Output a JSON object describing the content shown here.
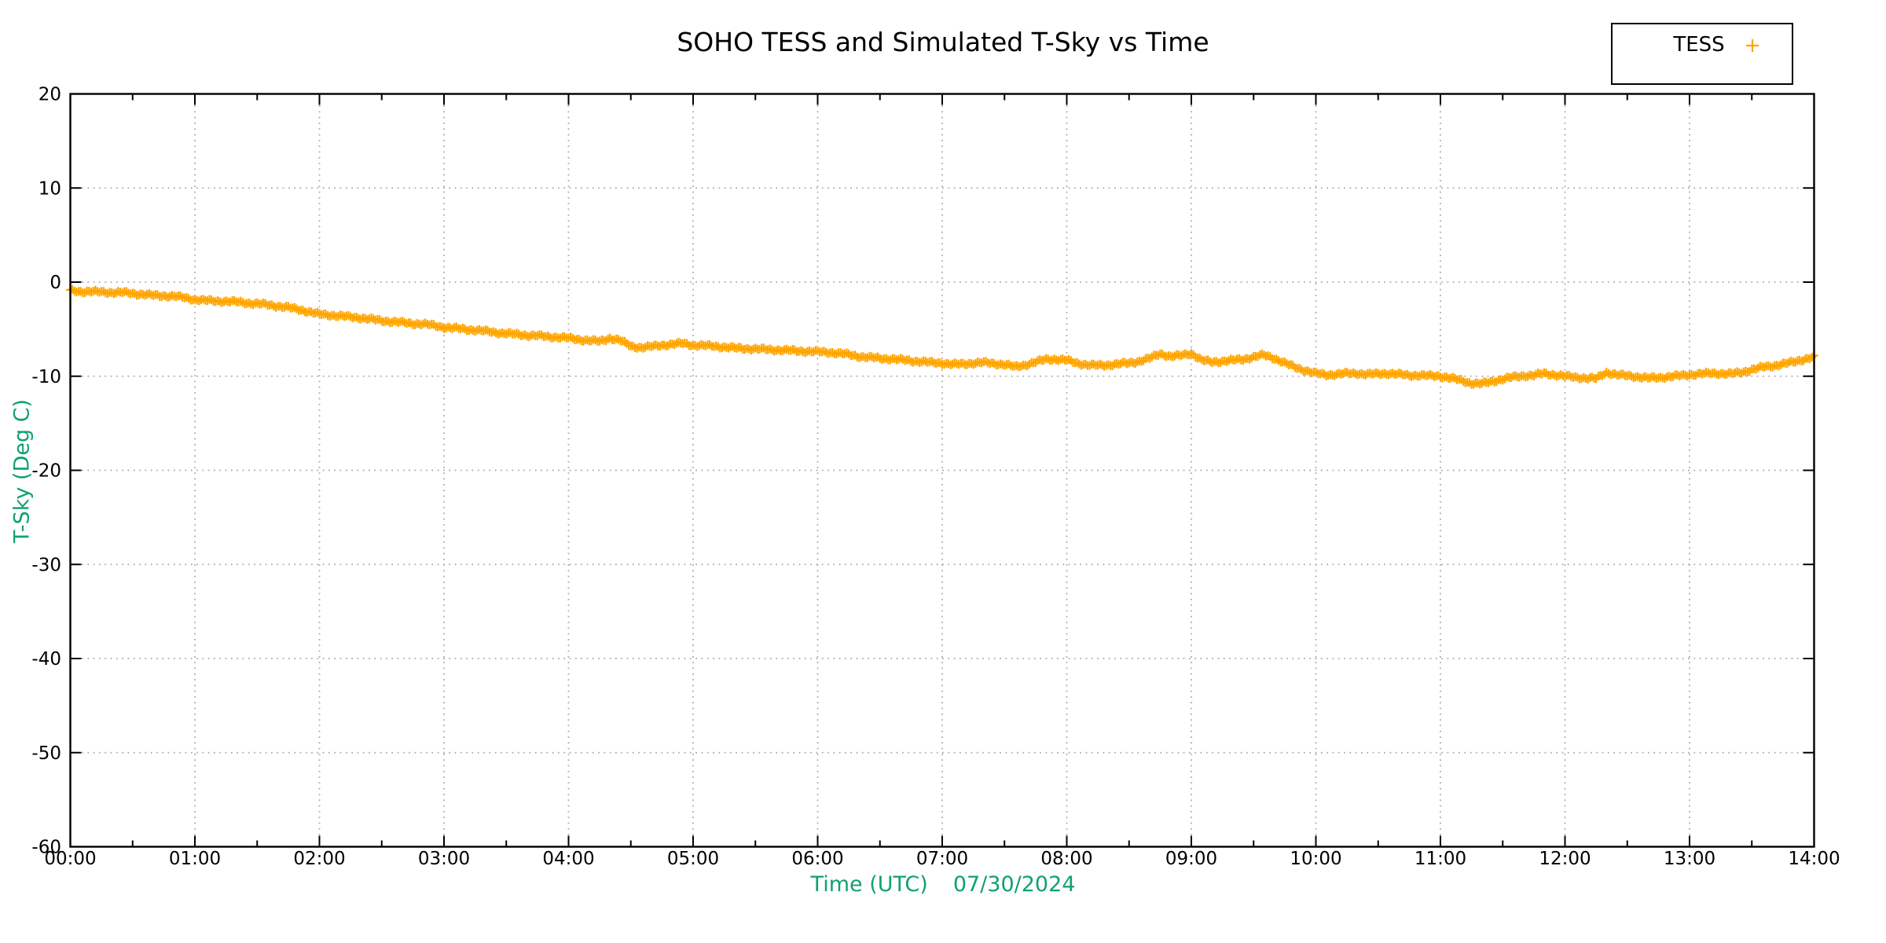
{
  "colors": {
    "series_orange": "#FFA500",
    "label_green": "#0fa173",
    "grid_gray": "#ababab",
    "axis_black": "#000000",
    "background": "#ffffff"
  },
  "labels": {
    "xlabel_time": "Time (UTC)",
    "xlabel_date": "07/30/2024"
  },
  "legend": {
    "entries": [
      {
        "label": "TESS",
        "marker": "plus",
        "color": "#FFA500"
      }
    ]
  },
  "chart_data": {
    "type": "scatter",
    "title": "SOHO TESS and Simulated T-Sky vs Time",
    "xlabel": "Time (UTC)   07/30/2024",
    "ylabel": "T-Sky (Deg C)",
    "legend_position": "top-right-outside",
    "grid": {
      "show": true,
      "style": "dotted"
    },
    "x_axis": {
      "timezone": "UTC",
      "date": "07/30/2024",
      "start_minutes": 0,
      "end_minutes": 840,
      "major_tick_minutes": 60,
      "minor_tick_minutes": 30,
      "tick_labels": [
        "00:00",
        "01:00",
        "02:00",
        "03:00",
        "04:00",
        "05:00",
        "06:00",
        "07:00",
        "08:00",
        "09:00",
        "10:00",
        "11:00",
        "12:00",
        "13:00",
        "14:00"
      ]
    },
    "y_axis": {
      "min": -60,
      "max": 20,
      "tick_step": 10,
      "tick_labels": [
        20,
        10,
        0,
        -10,
        -20,
        -30,
        -40,
        -50,
        -60
      ]
    },
    "series": [
      {
        "name": "TESS",
        "marker": "plus",
        "color": "#FFA500",
        "points_minutes_degC": [
          [
            0,
            -0.9
          ],
          [
            5,
            -1.0
          ],
          [
            10,
            -1.0
          ],
          [
            15,
            -1.05
          ],
          [
            20,
            -1.1
          ],
          [
            25,
            -1.1
          ],
          [
            30,
            -1.2
          ],
          [
            35,
            -1.3
          ],
          [
            40,
            -1.4
          ],
          [
            45,
            -1.45
          ],
          [
            50,
            -1.5
          ],
          [
            55,
            -1.65
          ],
          [
            60,
            -1.85
          ],
          [
            65,
            -1.95
          ],
          [
            70,
            -2.0
          ],
          [
            75,
            -2.05
          ],
          [
            80,
            -2.1
          ],
          [
            85,
            -2.2
          ],
          [
            90,
            -2.3
          ],
          [
            95,
            -2.4
          ],
          [
            100,
            -2.55
          ],
          [
            105,
            -2.7
          ],
          [
            110,
            -2.9
          ],
          [
            115,
            -3.15
          ],
          [
            120,
            -3.4
          ],
          [
            125,
            -3.5
          ],
          [
            130,
            -3.6
          ],
          [
            135,
            -3.7
          ],
          [
            140,
            -3.8
          ],
          [
            145,
            -3.95
          ],
          [
            150,
            -4.1
          ],
          [
            155,
            -4.2
          ],
          [
            160,
            -4.3
          ],
          [
            165,
            -4.4
          ],
          [
            170,
            -4.45
          ],
          [
            175,
            -4.6
          ],
          [
            180,
            -4.8
          ],
          [
            185,
            -4.9
          ],
          [
            190,
            -5.0
          ],
          [
            195,
            -5.1
          ],
          [
            200,
            -5.2
          ],
          [
            205,
            -5.35
          ],
          [
            210,
            -5.45
          ],
          [
            215,
            -5.55
          ],
          [
            220,
            -5.65
          ],
          [
            225,
            -5.7
          ],
          [
            230,
            -5.8
          ],
          [
            235,
            -5.85
          ],
          [
            240,
            -5.95
          ],
          [
            245,
            -6.1
          ],
          [
            250,
            -6.2
          ],
          [
            255,
            -6.3
          ],
          [
            260,
            -5.95
          ],
          [
            265,
            -6.2
          ],
          [
            270,
            -6.8
          ],
          [
            275,
            -6.95
          ],
          [
            280,
            -6.85
          ],
          [
            285,
            -6.7
          ],
          [
            290,
            -6.6
          ],
          [
            295,
            -6.5
          ],
          [
            300,
            -6.7
          ],
          [
            305,
            -6.75
          ],
          [
            310,
            -6.8
          ],
          [
            315,
            -6.9
          ],
          [
            320,
            -7.0
          ],
          [
            325,
            -7.05
          ],
          [
            330,
            -7.1
          ],
          [
            335,
            -7.15
          ],
          [
            340,
            -7.2
          ],
          [
            345,
            -7.25
          ],
          [
            350,
            -7.3
          ],
          [
            355,
            -7.35
          ],
          [
            360,
            -7.4
          ],
          [
            365,
            -7.45
          ],
          [
            370,
            -7.55
          ],
          [
            375,
            -7.7
          ],
          [
            380,
            -7.9
          ],
          [
            385,
            -8.0
          ],
          [
            390,
            -8.1
          ],
          [
            395,
            -8.15
          ],
          [
            400,
            -8.25
          ],
          [
            405,
            -8.35
          ],
          [
            410,
            -8.45
          ],
          [
            415,
            -8.55
          ],
          [
            420,
            -8.6
          ],
          [
            425,
            -8.75
          ],
          [
            430,
            -8.7
          ],
          [
            435,
            -8.6
          ],
          [
            440,
            -8.55
          ],
          [
            445,
            -8.65
          ],
          [
            450,
            -8.75
          ],
          [
            455,
            -9.0
          ],
          [
            460,
            -8.8
          ],
          [
            465,
            -8.5
          ],
          [
            470,
            -8.2
          ],
          [
            475,
            -8.2
          ],
          [
            480,
            -8.3
          ],
          [
            485,
            -8.6
          ],
          [
            490,
            -8.8
          ],
          [
            495,
            -8.85
          ],
          [
            500,
            -8.8
          ],
          [
            505,
            -8.7
          ],
          [
            510,
            -8.6
          ],
          [
            515,
            -8.4
          ],
          [
            520,
            -8.1
          ],
          [
            525,
            -7.6
          ],
          [
            530,
            -7.9
          ],
          [
            535,
            -7.8
          ],
          [
            540,
            -7.55
          ],
          [
            545,
            -8.3
          ],
          [
            550,
            -8.5
          ],
          [
            555,
            -8.4
          ],
          [
            560,
            -8.3
          ],
          [
            565,
            -8.2
          ],
          [
            570,
            -7.95
          ],
          [
            575,
            -7.75
          ],
          [
            580,
            -8.1
          ],
          [
            585,
            -8.6
          ],
          [
            590,
            -9.05
          ],
          [
            595,
            -9.4
          ],
          [
            600,
            -9.7
          ],
          [
            605,
            -9.85
          ],
          [
            610,
            -9.8
          ],
          [
            615,
            -9.7
          ],
          [
            620,
            -9.7
          ],
          [
            625,
            -9.8
          ],
          [
            630,
            -9.75
          ],
          [
            635,
            -9.7
          ],
          [
            640,
            -9.8
          ],
          [
            645,
            -9.9
          ],
          [
            650,
            -9.9
          ],
          [
            655,
            -9.95
          ],
          [
            660,
            -10.0
          ],
          [
            665,
            -10.2
          ],
          [
            670,
            -10.45
          ],
          [
            675,
            -10.75
          ],
          [
            680,
            -10.8
          ],
          [
            685,
            -10.55
          ],
          [
            690,
            -10.3
          ],
          [
            695,
            -10.1
          ],
          [
            700,
            -9.95
          ],
          [
            705,
            -9.9
          ],
          [
            710,
            -9.7
          ],
          [
            715,
            -9.85
          ],
          [
            720,
            -10.0
          ],
          [
            725,
            -10.1
          ],
          [
            730,
            -10.2
          ],
          [
            735,
            -10.25
          ],
          [
            740,
            -9.6
          ],
          [
            745,
            -9.85
          ],
          [
            750,
            -9.95
          ],
          [
            755,
            -10.05
          ],
          [
            760,
            -10.2
          ],
          [
            765,
            -10.15
          ],
          [
            770,
            -10.05
          ],
          [
            775,
            -9.95
          ],
          [
            780,
            -9.85
          ],
          [
            785,
            -9.75
          ],
          [
            790,
            -9.7
          ],
          [
            795,
            -9.7
          ],
          [
            800,
            -9.75
          ],
          [
            805,
            -9.6
          ],
          [
            810,
            -9.3
          ],
          [
            815,
            -9.05
          ],
          [
            820,
            -8.9
          ],
          [
            825,
            -8.7
          ],
          [
            830,
            -8.5
          ],
          [
            835,
            -8.2
          ],
          [
            840,
            -7.95
          ]
        ]
      }
    ]
  }
}
